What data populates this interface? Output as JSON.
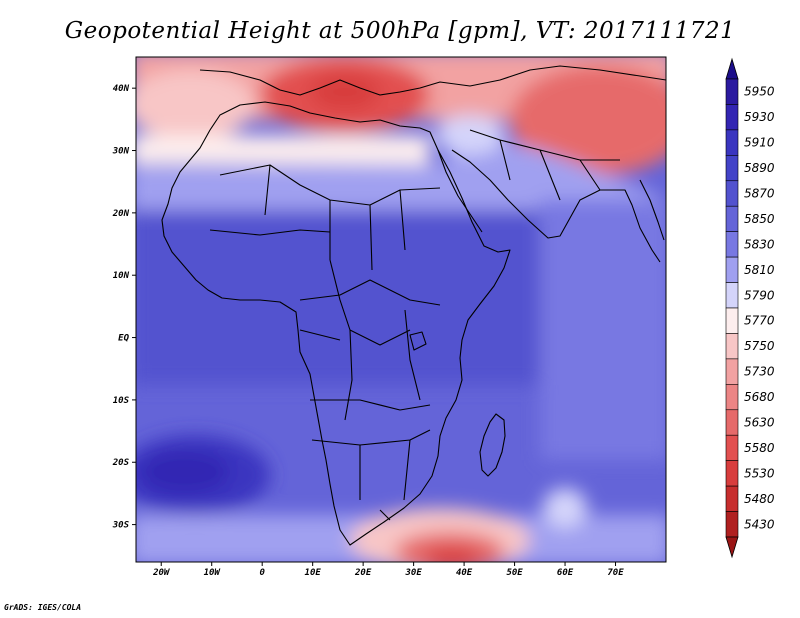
{
  "title": "Geopotential Height at 500hPa [gpm], VT: 2017111721",
  "credit": "GrADS: IGES/COLA",
  "map": {
    "lon_range": [
      -25,
      80
    ],
    "lat_range": [
      -36,
      45
    ],
    "lon_ticks": [
      {
        "value": -20,
        "label": "20W"
      },
      {
        "value": -10,
        "label": "10W"
      },
      {
        "value": 0,
        "label": "0"
      },
      {
        "value": 10,
        "label": "10E"
      },
      {
        "value": 20,
        "label": "20E"
      },
      {
        "value": 30,
        "label": "30E"
      },
      {
        "value": 40,
        "label": "40E"
      },
      {
        "value": 50,
        "label": "50E"
      },
      {
        "value": 60,
        "label": "60E"
      },
      {
        "value": 70,
        "label": "70E"
      }
    ],
    "lat_ticks": [
      {
        "value": 40,
        "label": "40N"
      },
      {
        "value": 30,
        "label": "30N"
      },
      {
        "value": 20,
        "label": "20N"
      },
      {
        "value": 10,
        "label": "10N"
      },
      {
        "value": 0,
        "label": "EQ"
      },
      {
        "value": -10,
        "label": "10S"
      },
      {
        "value": -20,
        "label": "20S"
      },
      {
        "value": -30,
        "label": "30S"
      }
    ]
  },
  "colorbar": {
    "levels": [
      {
        "label": "5950",
        "color": "#2b1aa0"
      },
      {
        "label": "5930",
        "color": "#3325b3"
      },
      {
        "label": "5910",
        "color": "#3a35c0"
      },
      {
        "label": "5890",
        "color": "#4343c8"
      },
      {
        "label": "5870",
        "color": "#5252cf"
      },
      {
        "label": "5850",
        "color": "#6464d8"
      },
      {
        "label": "5830",
        "color": "#7878e2"
      },
      {
        "label": "5810",
        "color": "#a0a0f0"
      },
      {
        "label": "5790",
        "color": "#d4d4fa"
      },
      {
        "label": "5770",
        "color": "#fdeeee"
      },
      {
        "label": "5750",
        "color": "#f8c6c6"
      },
      {
        "label": "5730",
        "color": "#f2a2a2"
      },
      {
        "label": "5680",
        "color": "#ec8585"
      },
      {
        "label": "5630",
        "color": "#e66a6a"
      },
      {
        "label": "5580",
        "color": "#e25050"
      },
      {
        "label": "5530",
        "color": "#d83d3d"
      },
      {
        "label": "5480",
        "color": "#c72e2e"
      },
      {
        "label": "5430",
        "color": "#b02020"
      }
    ],
    "top_arrow_color": "#1c0e8a",
    "bottom_arrow_color": "#9a1515"
  },
  "field": [
    {
      "lon": 20,
      "lat": 42,
      "level": 5730
    },
    {
      "lon": 40,
      "lat": 44,
      "level": 5750
    },
    {
      "lon": 65,
      "lat": 36,
      "level": 5730
    },
    {
      "lon": 0,
      "lat": 41,
      "level": 5770
    },
    {
      "lon": -18,
      "lat": -22,
      "level": 5890
    },
    {
      "lon": 40,
      "lat": -35,
      "level": 5580
    },
    {
      "lon": 60,
      "lat": -32,
      "level": 5790
    }
  ]
}
